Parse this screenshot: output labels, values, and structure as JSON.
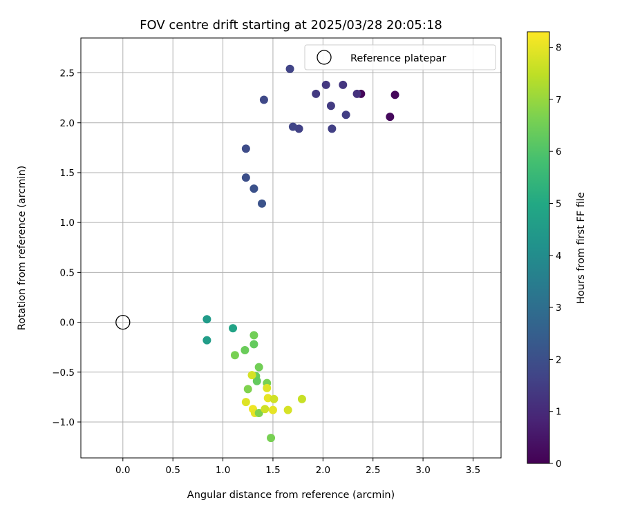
{
  "chart_data": {
    "type": "scatter",
    "title": "FOV centre drift starting at 2025/03/28 20:05:18",
    "xlabel": "Angular distance from reference (arcmin)",
    "ylabel": "Rotation from reference (arcmin)",
    "xlim": [
      -0.42,
      3.78
    ],
    "ylim": [
      -1.36,
      2.85
    ],
    "xticks": [
      0.0,
      0.5,
      1.0,
      1.5,
      2.0,
      2.5,
      3.0,
      3.5
    ],
    "xtick_labels": [
      "0.0",
      "0.5",
      "1.0",
      "1.5",
      "2.0",
      "2.5",
      "3.0",
      "3.5"
    ],
    "yticks": [
      -1.0,
      -0.5,
      0.0,
      0.5,
      1.0,
      1.5,
      2.0,
      2.5
    ],
    "ytick_labels": [
      "−1.0",
      "−0.5",
      "0.0",
      "0.5",
      "1.0",
      "1.5",
      "2.0",
      "2.5"
    ],
    "grid": true,
    "colormap": "viridis",
    "colorbar": {
      "label": "Hours from first FF file",
      "range": [
        0,
        8.3
      ],
      "ticks": [
        0,
        1,
        2,
        3,
        4,
        5,
        6,
        7,
        8
      ],
      "tick_labels": [
        "0",
        "1",
        "2",
        "3",
        "4",
        "5",
        "6",
        "7",
        "8"
      ]
    },
    "legend": {
      "position": "top-right",
      "entries": [
        {
          "label": "Reference platepar",
          "marker": "open-circle"
        }
      ]
    },
    "reference_point": {
      "x": 0.0,
      "y": 0.0
    },
    "points": [
      {
        "x": 2.38,
        "y": 2.29,
        "hours": 0.1
      },
      {
        "x": 2.72,
        "y": 2.28,
        "hours": 0.15
      },
      {
        "x": 2.67,
        "y": 2.06,
        "hours": 0.2
      },
      {
        "x": 2.34,
        "y": 2.29,
        "hours": 1.2
      },
      {
        "x": 2.2,
        "y": 2.38,
        "hours": 1.3
      },
      {
        "x": 2.03,
        "y": 2.38,
        "hours": 1.35
      },
      {
        "x": 1.93,
        "y": 2.29,
        "hours": 1.4
      },
      {
        "x": 2.08,
        "y": 2.17,
        "hours": 1.45
      },
      {
        "x": 2.23,
        "y": 2.08,
        "hours": 1.5
      },
      {
        "x": 2.09,
        "y": 1.94,
        "hours": 1.55
      },
      {
        "x": 1.76,
        "y": 1.94,
        "hours": 1.6
      },
      {
        "x": 1.67,
        "y": 2.54,
        "hours": 1.65
      },
      {
        "x": 1.7,
        "y": 1.96,
        "hours": 1.7
      },
      {
        "x": 1.41,
        "y": 2.23,
        "hours": 1.8
      },
      {
        "x": 1.23,
        "y": 1.74,
        "hours": 1.9
      },
      {
        "x": 1.23,
        "y": 1.45,
        "hours": 2.0
      },
      {
        "x": 1.31,
        "y": 1.34,
        "hours": 2.05
      },
      {
        "x": 1.39,
        "y": 1.19,
        "hours": 2.1
      },
      {
        "x": 0.84,
        "y": 0.03,
        "hours": 4.5
      },
      {
        "x": 0.84,
        "y": -0.18,
        "hours": 4.6
      },
      {
        "x": 1.1,
        "y": -0.06,
        "hours": 4.8
      },
      {
        "x": 1.31,
        "y": -0.13,
        "hours": 6.5
      },
      {
        "x": 1.31,
        "y": -0.22,
        "hours": 6.3
      },
      {
        "x": 1.22,
        "y": -0.28,
        "hours": 6.4
      },
      {
        "x": 1.12,
        "y": -0.33,
        "hours": 6.6
      },
      {
        "x": 1.36,
        "y": -0.45,
        "hours": 6.5
      },
      {
        "x": 1.33,
        "y": -0.54,
        "hours": 6.4
      },
      {
        "x": 1.34,
        "y": -0.59,
        "hours": 6.3
      },
      {
        "x": 1.44,
        "y": -0.61,
        "hours": 6.6
      },
      {
        "x": 1.25,
        "y": -0.67,
        "hours": 6.7
      },
      {
        "x": 1.29,
        "y": -0.53,
        "hours": 7.8
      },
      {
        "x": 1.44,
        "y": -0.66,
        "hours": 7.9
      },
      {
        "x": 1.45,
        "y": -0.76,
        "hours": 8.0
      },
      {
        "x": 1.51,
        "y": -0.77,
        "hours": 7.7
      },
      {
        "x": 1.79,
        "y": -0.77,
        "hours": 7.6
      },
      {
        "x": 1.23,
        "y": -0.8,
        "hours": 7.9
      },
      {
        "x": 1.3,
        "y": -0.87,
        "hours": 8.1
      },
      {
        "x": 1.32,
        "y": -0.91,
        "hours": 8.0
      },
      {
        "x": 1.36,
        "y": -0.91,
        "hours": 6.7
      },
      {
        "x": 1.42,
        "y": -0.87,
        "hours": 7.7
      },
      {
        "x": 1.5,
        "y": -0.88,
        "hours": 8.0
      },
      {
        "x": 1.65,
        "y": -0.88,
        "hours": 7.8
      },
      {
        "x": 1.48,
        "y": -1.16,
        "hours": 6.6
      }
    ]
  }
}
